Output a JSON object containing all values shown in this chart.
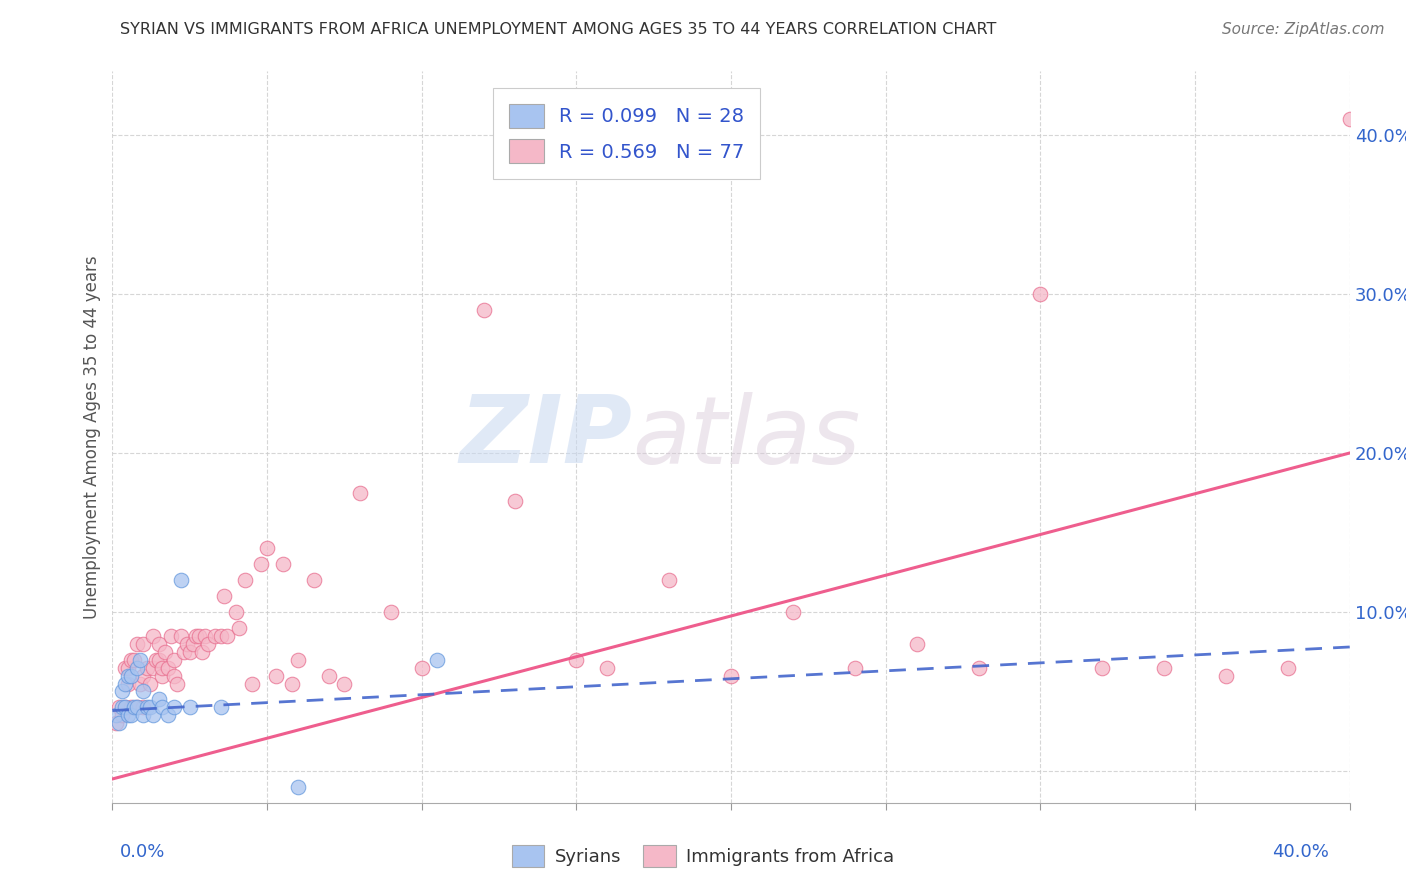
{
  "title": "SYRIAN VS IMMIGRANTS FROM AFRICA UNEMPLOYMENT AMONG AGES 35 TO 44 YEARS CORRELATION CHART",
  "source": "Source: ZipAtlas.com",
  "ylabel": "Unemployment Among Ages 35 to 44 years",
  "xlim": [
    0.0,
    0.4
  ],
  "ylim": [
    -0.02,
    0.44
  ],
  "ytick_vals": [
    0.0,
    0.1,
    0.2,
    0.3,
    0.4
  ],
  "ytick_labels": [
    "",
    "10.0%",
    "20.0%",
    "30.0%",
    "40.0%"
  ],
  "xtick_vals": [
    0.0,
    0.05,
    0.1,
    0.15,
    0.2,
    0.25,
    0.3,
    0.35,
    0.4
  ],
  "syrian_color": "#a8c4f0",
  "african_color": "#f5b8c8",
  "syrian_edge_color": "#6699dd",
  "african_edge_color": "#e87090",
  "syrian_line_color": "#4466cc",
  "african_line_color": "#ee5588",
  "syrian_R": 0.099,
  "syrian_N": 28,
  "african_R": 0.569,
  "african_N": 77,
  "legend_text_color": "#3355cc",
  "background_color": "#ffffff",
  "watermark_zip": "ZIP",
  "watermark_atlas": "atlas",
  "syrian_x": [
    0.001,
    0.002,
    0.003,
    0.003,
    0.004,
    0.004,
    0.005,
    0.005,
    0.006,
    0.006,
    0.007,
    0.008,
    0.008,
    0.009,
    0.01,
    0.01,
    0.011,
    0.012,
    0.013,
    0.015,
    0.016,
    0.018,
    0.02,
    0.022,
    0.025,
    0.035,
    0.06,
    0.105
  ],
  "syrian_y": [
    0.035,
    0.03,
    0.04,
    0.05,
    0.04,
    0.055,
    0.035,
    0.06,
    0.035,
    0.06,
    0.04,
    0.04,
    0.065,
    0.07,
    0.035,
    0.05,
    0.04,
    0.04,
    0.035,
    0.045,
    0.04,
    0.035,
    0.04,
    0.12,
    0.04,
    0.04,
    -0.01,
    0.07
  ],
  "african_x": [
    0.001,
    0.002,
    0.003,
    0.004,
    0.004,
    0.005,
    0.005,
    0.006,
    0.006,
    0.007,
    0.008,
    0.008,
    0.009,
    0.01,
    0.01,
    0.01,
    0.011,
    0.012,
    0.013,
    0.013,
    0.014,
    0.015,
    0.015,
    0.016,
    0.016,
    0.017,
    0.018,
    0.019,
    0.02,
    0.02,
    0.021,
    0.022,
    0.023,
    0.024,
    0.025,
    0.026,
    0.027,
    0.028,
    0.029,
    0.03,
    0.031,
    0.033,
    0.035,
    0.036,
    0.037,
    0.04,
    0.041,
    0.043,
    0.045,
    0.048,
    0.05,
    0.053,
    0.055,
    0.058,
    0.06,
    0.065,
    0.07,
    0.075,
    0.08,
    0.09,
    0.1,
    0.12,
    0.13,
    0.15,
    0.16,
    0.18,
    0.2,
    0.22,
    0.24,
    0.26,
    0.28,
    0.3,
    0.32,
    0.34,
    0.36,
    0.38,
    0.4
  ],
  "african_y": [
    0.03,
    0.04,
    0.035,
    0.04,
    0.065,
    0.055,
    0.065,
    0.07,
    0.04,
    0.07,
    0.04,
    0.08,
    0.055,
    0.04,
    0.06,
    0.08,
    0.065,
    0.055,
    0.065,
    0.085,
    0.07,
    0.07,
    0.08,
    0.06,
    0.065,
    0.075,
    0.065,
    0.085,
    0.06,
    0.07,
    0.055,
    0.085,
    0.075,
    0.08,
    0.075,
    0.08,
    0.085,
    0.085,
    0.075,
    0.085,
    0.08,
    0.085,
    0.085,
    0.11,
    0.085,
    0.1,
    0.09,
    0.12,
    0.055,
    0.13,
    0.14,
    0.06,
    0.13,
    0.055,
    0.07,
    0.12,
    0.06,
    0.055,
    0.175,
    0.1,
    0.065,
    0.29,
    0.17,
    0.07,
    0.065,
    0.12,
    0.06,
    0.1,
    0.065,
    0.08,
    0.065,
    0.3,
    0.065,
    0.065,
    0.06,
    0.065,
    0.41
  ],
  "african_line_x0": 0.0,
  "african_line_y0": -0.005,
  "african_line_x1": 0.4,
  "african_line_y1": 0.2,
  "syrian_line_x0": 0.0,
  "syrian_line_y0": 0.038,
  "syrian_line_x1": 0.4,
  "syrian_line_y1": 0.078
}
